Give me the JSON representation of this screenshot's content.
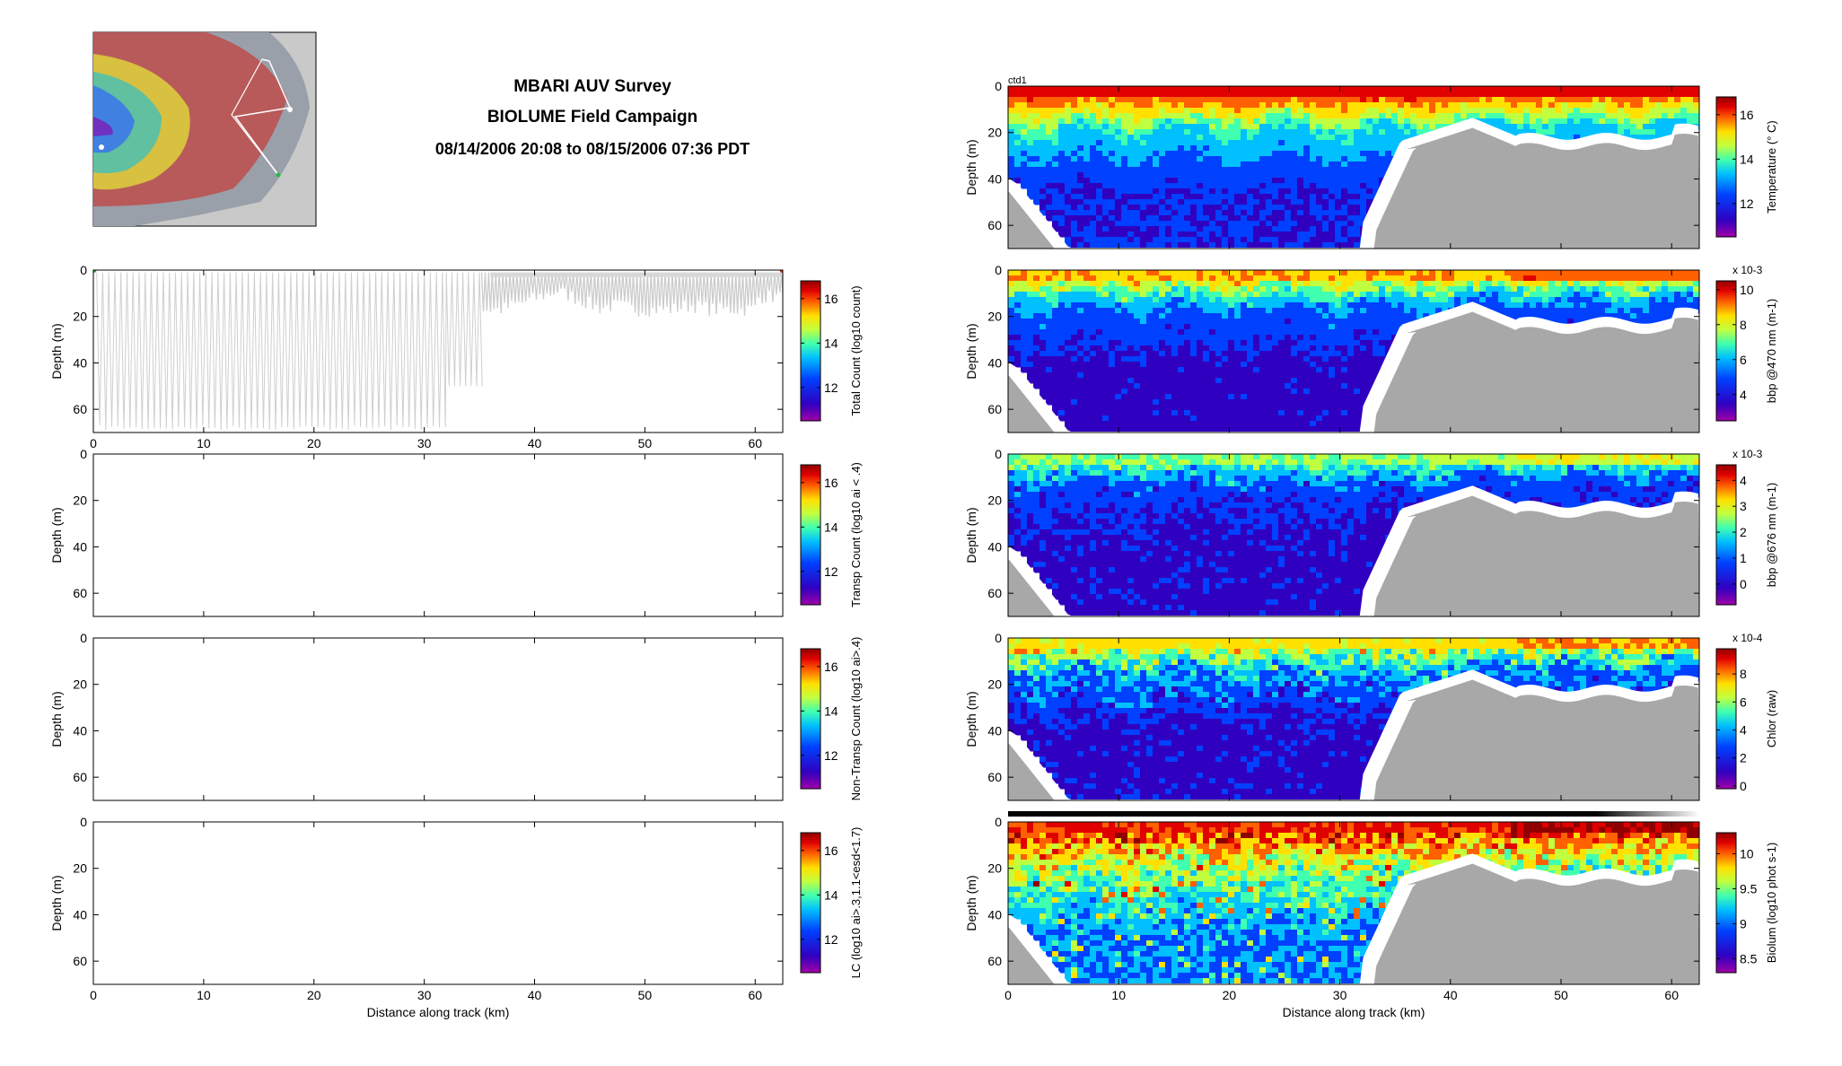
{
  "header": {
    "title": "MBARI AUV Survey",
    "campaign": "BIOLUME Field Campaign",
    "time_range": "08/14/2006 20:08 to 08/15/2006 07:36 PDT"
  },
  "colors": {
    "bathymetry": "#a8a8a8",
    "track": "#c8c8c8",
    "jet_low": "#a800a8",
    "jet_high": "#9b0000"
  },
  "chart_data": [
    {
      "id": "total-count",
      "type": "heatmap",
      "title": "",
      "xlabel": "",
      "ylabel": "Depth (m)",
      "xlim": [
        0,
        62.5
      ],
      "ylim": [
        70,
        0
      ],
      "x_ticks": [
        0,
        10,
        20,
        30,
        40,
        50,
        60
      ],
      "y_ticks": [
        0,
        20,
        40,
        60
      ],
      "colorbar": {
        "label": "Total Count (log10 count)",
        "ticks": [
          "12",
          "14",
          "16"
        ],
        "range": [
          10.5,
          16.8
        ]
      },
      "note_values": {
        "track_deep_dives_until_km": 32,
        "track_mid_dives_until_km": 35,
        "track_shallow_after_km": 35
      }
    },
    {
      "id": "transp-count",
      "type": "heatmap",
      "ylabel": "Depth (m)",
      "xlim": [
        0,
        62.5
      ],
      "ylim": [
        70,
        0
      ],
      "y_ticks": [
        0,
        20,
        40,
        60
      ],
      "colorbar": {
        "label": "Transp Count (log10 ai < .4)",
        "ticks": [
          "12",
          "14",
          "16"
        ],
        "range": [
          10.5,
          16.8
        ]
      }
    },
    {
      "id": "non-transp-count",
      "type": "heatmap",
      "ylabel": "Depth (m)",
      "xlim": [
        0,
        62.5
      ],
      "ylim": [
        70,
        0
      ],
      "y_ticks": [
        0,
        20,
        40,
        60
      ],
      "colorbar": {
        "label": "Non-Transp Count (log10 ai>.4)",
        "ticks": [
          "12",
          "14",
          "16"
        ],
        "range": [
          10.5,
          16.8
        ]
      }
    },
    {
      "id": "lc",
      "type": "heatmap",
      "xlabel": "Distance along track (km)",
      "ylabel": "Depth (m)",
      "xlim": [
        0,
        62.5
      ],
      "ylim": [
        70,
        0
      ],
      "x_ticks": [
        0,
        10,
        20,
        30,
        40,
        50,
        60
      ],
      "y_ticks": [
        0,
        20,
        40,
        60
      ],
      "colorbar": {
        "label": "LC (log10 ai>.3,1.1<esd<1.7)",
        "ticks": [
          "12",
          "14",
          "16"
        ],
        "range": [
          10.5,
          16.8
        ]
      }
    },
    {
      "id": "temperature",
      "type": "heatmap",
      "corner_label": "ctd1",
      "ylabel": "Depth (m)",
      "xlim": [
        0,
        62.5
      ],
      "ylim": [
        70,
        0
      ],
      "y_ticks": [
        0,
        20,
        40,
        60
      ],
      "colorbar": {
        "label": "Temperature (° C)",
        "ticks": [
          "12",
          "14",
          "16"
        ],
        "range": [
          10.5,
          16.8
        ]
      },
      "profile": {
        "mixed_layer_depth_m": 18,
        "surface": "warm",
        "deep": "cold"
      }
    },
    {
      "id": "bbp470",
      "type": "heatmap",
      "ylabel": "Depth (m)",
      "xlim": [
        0,
        62.5
      ],
      "ylim": [
        70,
        0
      ],
      "y_ticks": [
        0,
        20,
        40,
        60
      ],
      "colorbar": {
        "label": "bbp @470 nm (m-1)",
        "ticks": [
          "4",
          "6",
          "8",
          "10"
        ],
        "range": [
          2.5,
          10.5
        ],
        "exponent": "x 10-3"
      }
    },
    {
      "id": "bbp676",
      "type": "heatmap",
      "ylabel": "Depth (m)",
      "xlim": [
        0,
        62.5
      ],
      "ylim": [
        70,
        0
      ],
      "y_ticks": [
        0,
        20,
        40,
        60
      ],
      "colorbar": {
        "label": "bbp @676 nm (m-1)",
        "ticks": [
          "0",
          "1",
          "2",
          "3",
          "4"
        ],
        "range": [
          -0.8,
          4.6
        ],
        "exponent": "x 10-3"
      }
    },
    {
      "id": "chlor",
      "type": "heatmap",
      "ylabel": "Depth (m)",
      "xlim": [
        0,
        62.5
      ],
      "ylim": [
        70,
        0
      ],
      "y_ticks": [
        0,
        20,
        40,
        60
      ],
      "colorbar": {
        "label": "Chlor (raw)",
        "ticks": [
          "0",
          "2",
          "4",
          "6",
          "8"
        ],
        "range": [
          -0.2,
          9.8
        ],
        "exponent": "x 10-4"
      }
    },
    {
      "id": "biolum",
      "type": "heatmap",
      "xlabel": "Distance along track (km)",
      "ylabel": "Depth (m)",
      "xlim": [
        0,
        62.5
      ],
      "ylim": [
        70,
        0
      ],
      "x_ticks": [
        0,
        10,
        20,
        30,
        40,
        50,
        60
      ],
      "y_ticks": [
        0,
        20,
        40,
        60
      ],
      "colorbar": {
        "label": "Biolum (log10 phot s-1)",
        "ticks": [
          "8.5",
          "9",
          "9.5",
          "10"
        ],
        "range": [
          8.3,
          10.3
        ]
      }
    }
  ]
}
